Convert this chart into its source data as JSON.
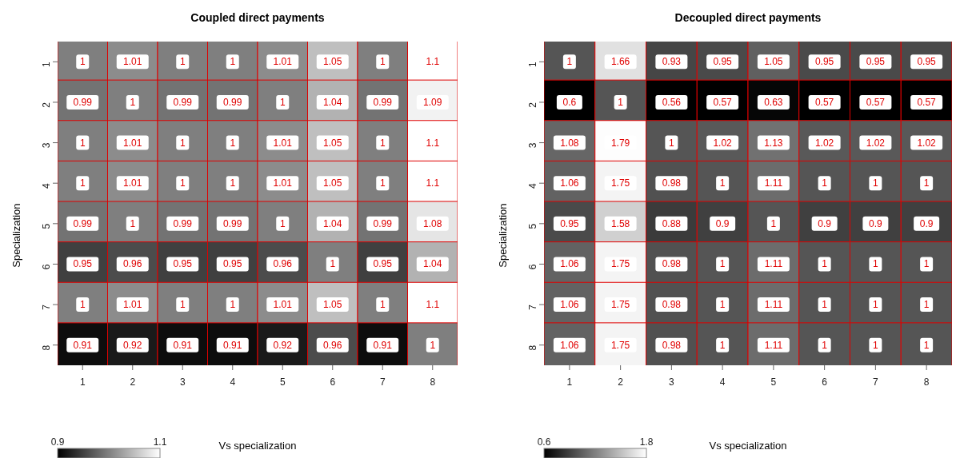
{
  "chart_data": [
    {
      "type": "heatmap",
      "title": "Coupled direct payments",
      "xlabel": "Vs specialization",
      "ylabel": "Specialization",
      "categories": [
        "1",
        "2",
        "3",
        "4",
        "5",
        "6",
        "7",
        "8"
      ],
      "y_categories": [
        "1",
        "2",
        "3",
        "4",
        "5",
        "6",
        "7",
        "8"
      ],
      "cells": [
        [
          1,
          1.01,
          1,
          1,
          1.01,
          1.05,
          1,
          1.1
        ],
        [
          0.99,
          1,
          0.99,
          0.99,
          1,
          1.04,
          0.99,
          1.09
        ],
        [
          1,
          1.01,
          1,
          1,
          1.01,
          1.05,
          1,
          1.1
        ],
        [
          1,
          1.01,
          1,
          1,
          1.01,
          1.05,
          1,
          1.1
        ],
        [
          0.99,
          1,
          0.99,
          0.99,
          1,
          1.04,
          0.99,
          1.08
        ],
        [
          0.95,
          0.96,
          0.95,
          0.95,
          0.96,
          1,
          0.95,
          1.04
        ],
        [
          1,
          1.01,
          1,
          1,
          1.01,
          1.05,
          1,
          1.1
        ],
        [
          0.91,
          0.92,
          0.91,
          0.91,
          0.92,
          0.96,
          0.91,
          1
        ]
      ],
      "clim": [
        0.9,
        1.1
      ],
      "cticks": [
        0.9,
        1.1
      ],
      "data_labels": true
    },
    {
      "type": "heatmap",
      "title": "Decoupled direct payments",
      "xlabel": "Vs specialization",
      "ylabel": "Specialization",
      "categories": [
        "1",
        "2",
        "3",
        "4",
        "5",
        "6",
        "7",
        "8"
      ],
      "y_categories": [
        "1",
        "2",
        "3",
        "4",
        "5",
        "6",
        "7",
        "8"
      ],
      "cells": [
        [
          1,
          1.66,
          0.93,
          0.95,
          1.05,
          0.95,
          0.95,
          0.95
        ],
        [
          0.6,
          1,
          0.56,
          0.57,
          0.63,
          0.57,
          0.57,
          0.57
        ],
        [
          1.08,
          1.79,
          1,
          1.02,
          1.13,
          1.02,
          1.02,
          1.02
        ],
        [
          1.06,
          1.75,
          0.98,
          1,
          1.11,
          1,
          1,
          1
        ],
        [
          0.95,
          1.58,
          0.88,
          0.9,
          1,
          0.9,
          0.9,
          0.9
        ],
        [
          1.06,
          1.75,
          0.98,
          1,
          1.11,
          1,
          1,
          1
        ],
        [
          1.06,
          1.75,
          0.98,
          1,
          1.11,
          1,
          1,
          1
        ],
        [
          1.06,
          1.75,
          0.98,
          1,
          1.11,
          1,
          1,
          1
        ]
      ],
      "clim": [
        0.6,
        1.8
      ],
      "cticks": [
        0.6,
        1.8
      ],
      "data_labels": true
    }
  ]
}
